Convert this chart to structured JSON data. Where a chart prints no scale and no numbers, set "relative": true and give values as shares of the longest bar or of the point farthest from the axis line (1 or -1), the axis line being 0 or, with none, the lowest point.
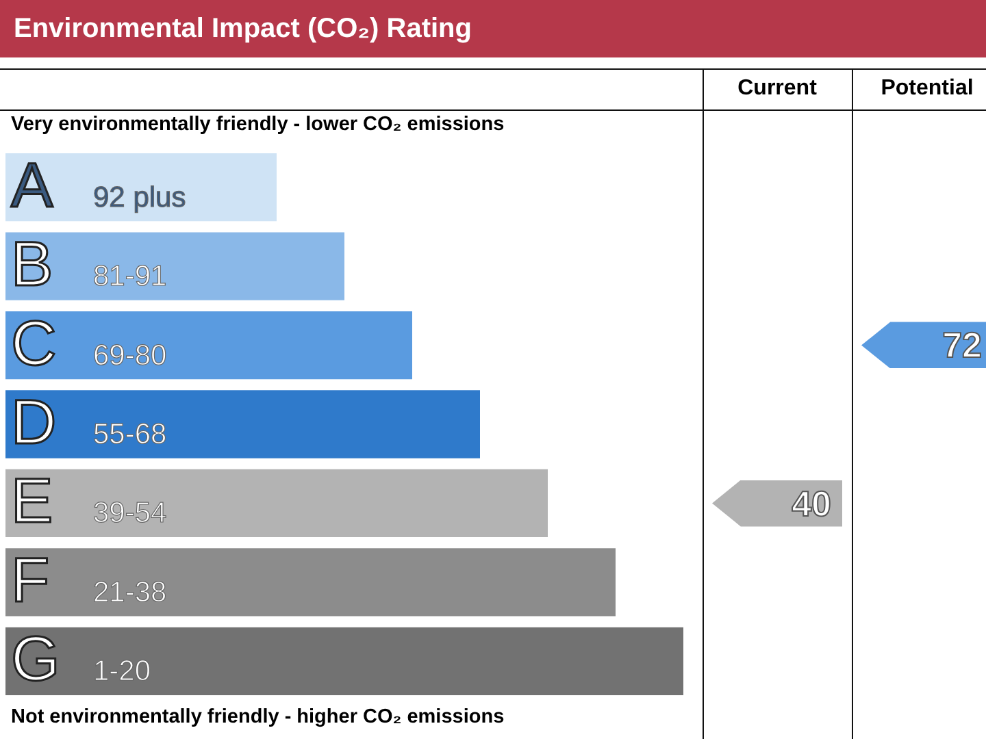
{
  "chart_data": {
    "type": "bar",
    "orientation": "horizontal",
    "relative": true,
    "title": "Environmental Impact (CO₂) Rating",
    "categories": [
      "A 92 plus",
      "B 81-91",
      "C 69-80",
      "D 55-68",
      "E 39-54",
      "F 21-38",
      "G 1-20"
    ],
    "values": [
      0.4,
      0.5,
      0.6,
      0.7,
      0.8,
      0.9,
      1.0
    ],
    "colors": [
      "#cfe3f5",
      "#8ab8e8",
      "#5a9be0",
      "#2f7acb",
      "#b3b3b3",
      "#8c8c8c",
      "#727272"
    ],
    "annotations": [
      "Current",
      "Potential",
      "Very environmentally friendly - lower CO₂ emissions",
      "Not environmentally friendly - higher CO₂ emissions",
      "40",
      "72"
    ]
  }
}
